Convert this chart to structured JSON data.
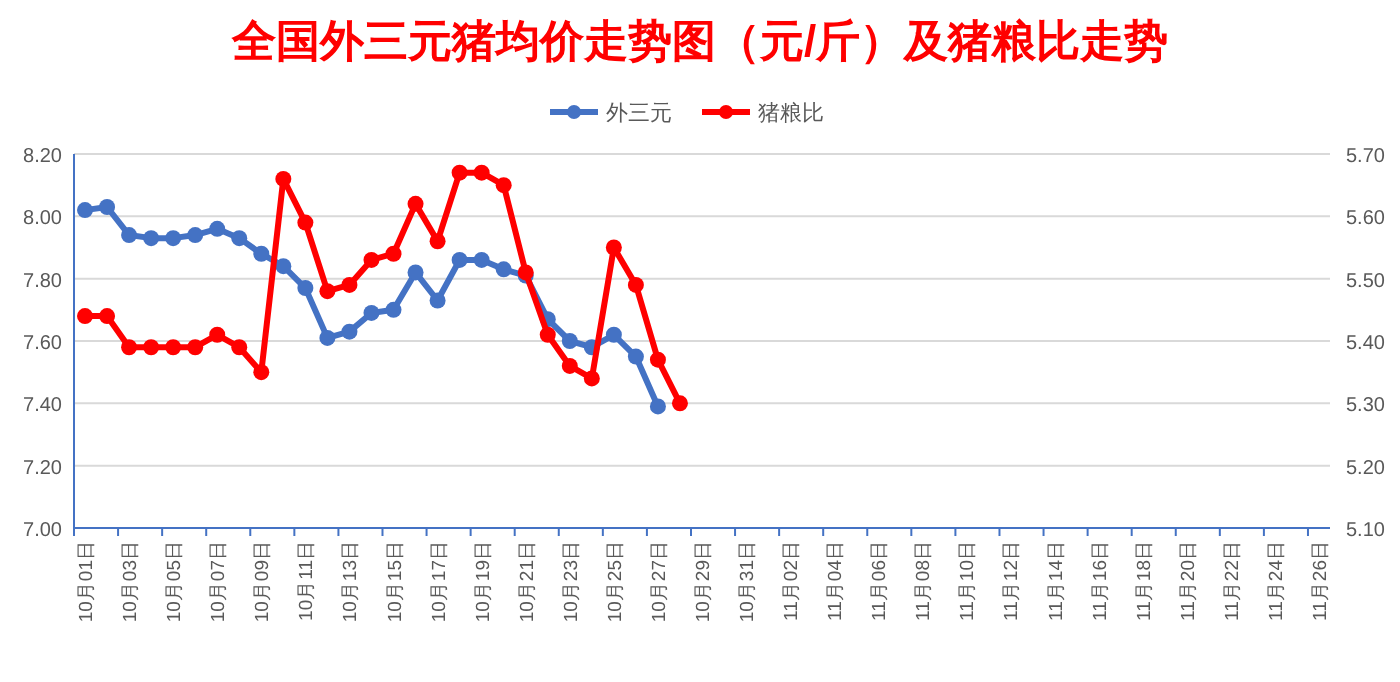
{
  "chart_data": {
    "type": "line",
    "title": "全国外三元猪均价走势图（元/斤）及猪粮比走势",
    "categories": [
      "10月01日",
      null,
      "10月03日",
      null,
      "10月05日",
      null,
      "10月07日",
      null,
      "10月09日",
      null,
      "10月11日",
      null,
      "10月13日",
      null,
      "10月15日",
      null,
      "10月17日",
      null,
      "10月19日",
      null,
      "10月21日",
      null,
      "10月23日",
      null,
      "10月25日",
      null,
      "10月27日",
      null,
      "10月29日",
      null,
      "10月31日",
      null,
      "11月02日",
      null,
      "11月04日",
      null,
      "11月06日",
      null,
      "11月08日",
      null,
      "11月10日",
      null,
      "11月12日",
      null,
      "11月14日",
      null,
      "11月16日",
      null,
      "11月18日",
      null,
      "11月20日",
      null,
      "11月22日",
      null,
      "11月24日",
      null,
      "11月26日"
    ],
    "series": [
      {
        "name": "外三元",
        "color": "#4472c4",
        "values": [
          8.02,
          8.03,
          7.94,
          7.93,
          7.93,
          7.94,
          7.96,
          7.93,
          7.88,
          7.84,
          7.77,
          7.61,
          7.63,
          7.69,
          7.7,
          7.82,
          7.73,
          7.86,
          7.86,
          7.83,
          7.81,
          7.67,
          7.6,
          7.58,
          7.62,
          7.55,
          7.39,
          null,
          null,
          null,
          null,
          null,
          null,
          null,
          null,
          null,
          null,
          null,
          null,
          null,
          null,
          null,
          null,
          null,
          null,
          null,
          null,
          null,
          null,
          null,
          null,
          null,
          null,
          null,
          null,
          null,
          null
        ]
      },
      {
        "name": "猪粮比",
        "color": "#ff0000",
        "axis": "y2",
        "values": [
          5.44,
          5.44,
          5.39,
          5.39,
          5.39,
          5.39,
          5.41,
          5.39,
          5.35,
          5.66,
          5.59,
          5.48,
          5.49,
          5.53,
          5.54,
          5.62,
          5.56,
          5.67,
          5.67,
          5.65,
          5.51,
          5.41,
          5.36,
          5.34,
          5.55,
          5.49,
          5.37,
          5.3,
          null,
          null,
          null,
          null,
          null,
          null,
          null,
          null,
          null,
          null,
          null,
          null,
          null,
          null,
          null,
          null,
          null,
          null,
          null,
          null,
          null,
          null,
          null,
          null,
          null,
          null,
          null,
          null,
          null
        ]
      }
    ],
    "ylim": [
      7.0,
      8.2
    ],
    "yticks": [
      {
        "value": 7.0,
        "label": "7.00"
      },
      {
        "value": 7.2,
        "label": "7.20"
      },
      {
        "value": 7.4,
        "label": "7.40"
      },
      {
        "value": 7.6,
        "label": "7.60"
      },
      {
        "value": 7.8,
        "label": "7.80"
      },
      {
        "value": 8.0,
        "label": "8.00"
      },
      {
        "value": 8.2,
        "label": "8.20"
      }
    ],
    "y2lim": [
      5.1,
      5.7
    ],
    "y2ticks": [
      {
        "value": 5.1,
        "label": "5.10"
      },
      {
        "value": 5.2,
        "label": "5.20"
      },
      {
        "value": 5.3,
        "label": "5.30"
      },
      {
        "value": 5.4,
        "label": "5.40"
      },
      {
        "value": 5.5,
        "label": "5.50"
      },
      {
        "value": 5.6,
        "label": "5.60"
      },
      {
        "value": 5.7,
        "label": "5.70"
      }
    ],
    "grid": "y",
    "legend": "top",
    "marker": "circle",
    "line_style": "solid"
  }
}
